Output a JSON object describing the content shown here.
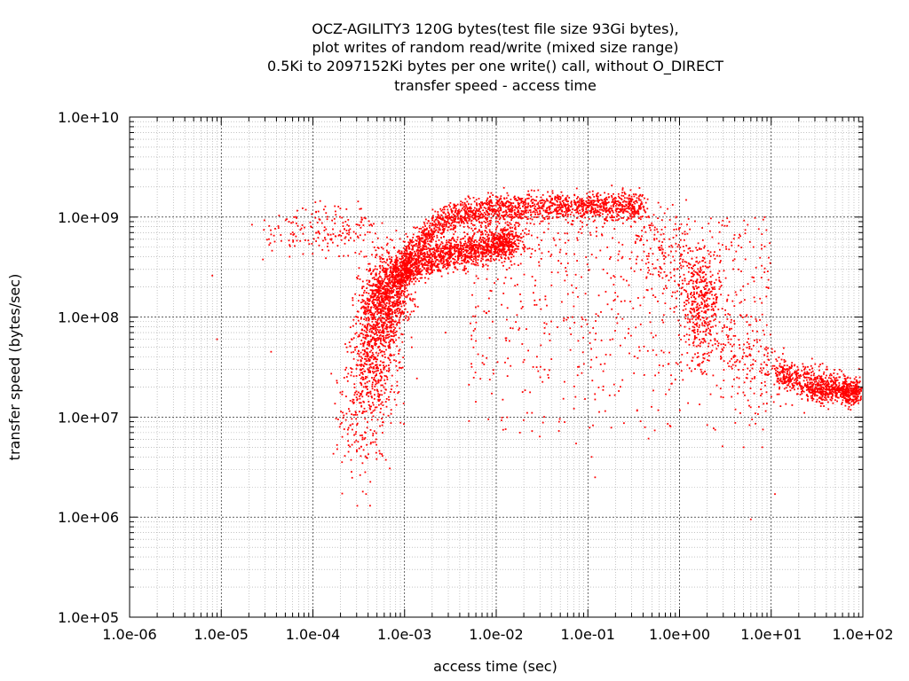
{
  "chart_data": {
    "type": "scatter",
    "title_lines": [
      "OCZ-AGILITY3 120G bytes(test file size 93Gi bytes),",
      "plot writes of random read/write (mixed size range)",
      "0.5Ki to 2097152Ki bytes per one write() call, without O_DIRECT",
      "transfer speed - access time"
    ],
    "xlabel": "access time (sec)",
    "ylabel": "transfer speed (bytes/sec)",
    "x_scale": "log",
    "y_scale": "log",
    "xlim": [
      1e-06,
      100
    ],
    "ylim": [
      100000.0,
      10000000000.0
    ],
    "x_tick_values": [
      1e-06,
      1e-05,
      0.0001,
      0.001,
      0.01,
      0.1,
      1,
      10,
      100
    ],
    "x_tick_labels": [
      "1.0e-06",
      "1.0e-05",
      "1.0e-04",
      "1.0e-03",
      "1.0e-02",
      "1.0e-01",
      "1.0e+00",
      "1.0e+01",
      "1.0e+02"
    ],
    "y_tick_values": [
      100000.0,
      1000000.0,
      10000000.0,
      100000000.0,
      1000000000.0,
      10000000000.0
    ],
    "y_tick_labels": [
      "1.0e+05",
      "1.0e+06",
      "1.0e+07",
      "1.0e+08",
      "1.0e+09",
      "1.0e+10"
    ],
    "grid": true,
    "point_color": "#ff0000",
    "clusters": [
      {
        "x": [
          0.0008,
          0.0012,
          0.002,
          0.0035,
          0.006,
          0.01,
          0.015
        ],
        "y": [
          250000000.0,
          320000000.0,
          380000000.0,
          430000000.0,
          480000000.0,
          520000000.0,
          570000000.0
        ],
        "spread": 0.08,
        "count": 1400
      },
      {
        "x": [
          0.0009,
          0.0015,
          0.0025,
          0.004,
          0.008,
          0.015,
          0.03,
          0.06,
          0.12,
          0.25,
          0.4
        ],
        "y": [
          350000000.0,
          600000000.0,
          900000000.0,
          1100000000.0,
          1200000000.0,
          1250000000.0,
          1280000000.0,
          1300000000.0,
          1300000000.0,
          1300000000.0,
          1300000000.0
        ],
        "spread": 0.07,
        "count": 1700
      },
      {
        "x": [
          0.00045,
          0.0005,
          0.0006,
          0.0007,
          0.0008
        ],
        "y": [
          50000000.0,
          100000000.0,
          150000000.0,
          200000000.0,
          250000000.0
        ],
        "spread": 0.2,
        "count": 1200
      },
      {
        "x": [
          0.00032,
          0.00038,
          0.00045,
          0.0005
        ],
        "y": [
          6000000.0,
          15000000.0,
          30000000.0,
          50000000.0
        ],
        "spread": 0.25,
        "count": 450
      },
      {
        "x": [
          3e-05,
          6e-05,
          0.0001,
          0.00015,
          0.0002,
          0.0003,
          0.0004
        ],
        "y": [
          600000000.0,
          700000000.0,
          750000000.0,
          700000000.0,
          700000000.0,
          800000000.0,
          800000000.0
        ],
        "spread": 0.12,
        "count": 180
      },
      {
        "x": [
          0.5,
          0.8,
          1.2,
          1.8,
          2.5,
          4,
          7,
          12
        ],
        "y": [
          600000000.0,
          400000000.0,
          250000000.0,
          150000000.0,
          80000000.0,
          50000000.0,
          35000000.0,
          25000000.0
        ],
        "spread": 0.22,
        "count": 450
      },
      {
        "x": [
          12,
          20,
          35,
          60,
          90
        ],
        "y": [
          28000000.0,
          24000000.0,
          21000000.0,
          19000000.0,
          18000000.0
        ],
        "spread": 0.08,
        "count": 650
      },
      {
        "x": [
          25,
          45,
          70,
          90
        ],
        "y": [
          17500000.0,
          17500000.0,
          17500000.0,
          17500000.0
        ],
        "spread": 0.04,
        "count": 250
      },
      {
        "x": [
          1.7,
          1.9,
          2.0
        ],
        "y": [
          300000000.0,
          200000000.0,
          120000000.0
        ],
        "spread": 0.15,
        "count": 160
      },
      {
        "x": [
          1.5,
          1.6,
          1.7
        ],
        "y": [
          120000000.0,
          70000000.0,
          50000000.0
        ],
        "spread": 0.15,
        "count": 110
      },
      {
        "x": [
          0.004,
          0.01,
          0.015,
          0.02
        ],
        "y": [
          800000000.0,
          700000000.0,
          650000000.0,
          600000000.0
        ],
        "spread": 0.15,
        "count": 160
      }
    ],
    "scatter_region": {
      "x_range": [
        0.005,
        10
      ],
      "y_range": [
        5000000.0,
        1000000000.0
      ],
      "count": 700
    },
    "outliers": [
      {
        "x": 8e-06,
        "y": 260000000.0
      },
      {
        "x": 9e-06,
        "y": 60000000.0
      },
      {
        "x": 3.5e-05,
        "y": 45000000.0
      },
      {
        "x": 0.00035,
        "y": 1800000.0
      },
      {
        "x": 0.00038,
        "y": 1700000.0
      },
      {
        "x": 0.00042,
        "y": 1300000.0
      },
      {
        "x": 0.0012,
        "y": 50000000.0
      },
      {
        "x": 0.0028,
        "y": 70000000.0
      },
      {
        "x": 0.11,
        "y": 4000000.0
      },
      {
        "x": 0.12,
        "y": 2500000.0
      },
      {
        "x": 6,
        "y": 950000.0
      },
      {
        "x": 11,
        "y": 1700000.0
      },
      {
        "x": 5,
        "y": 5000000.0
      },
      {
        "x": 8,
        "y": 5000000.0
      },
      {
        "x": 0.04,
        "y": 38000000.0
      }
    ]
  }
}
